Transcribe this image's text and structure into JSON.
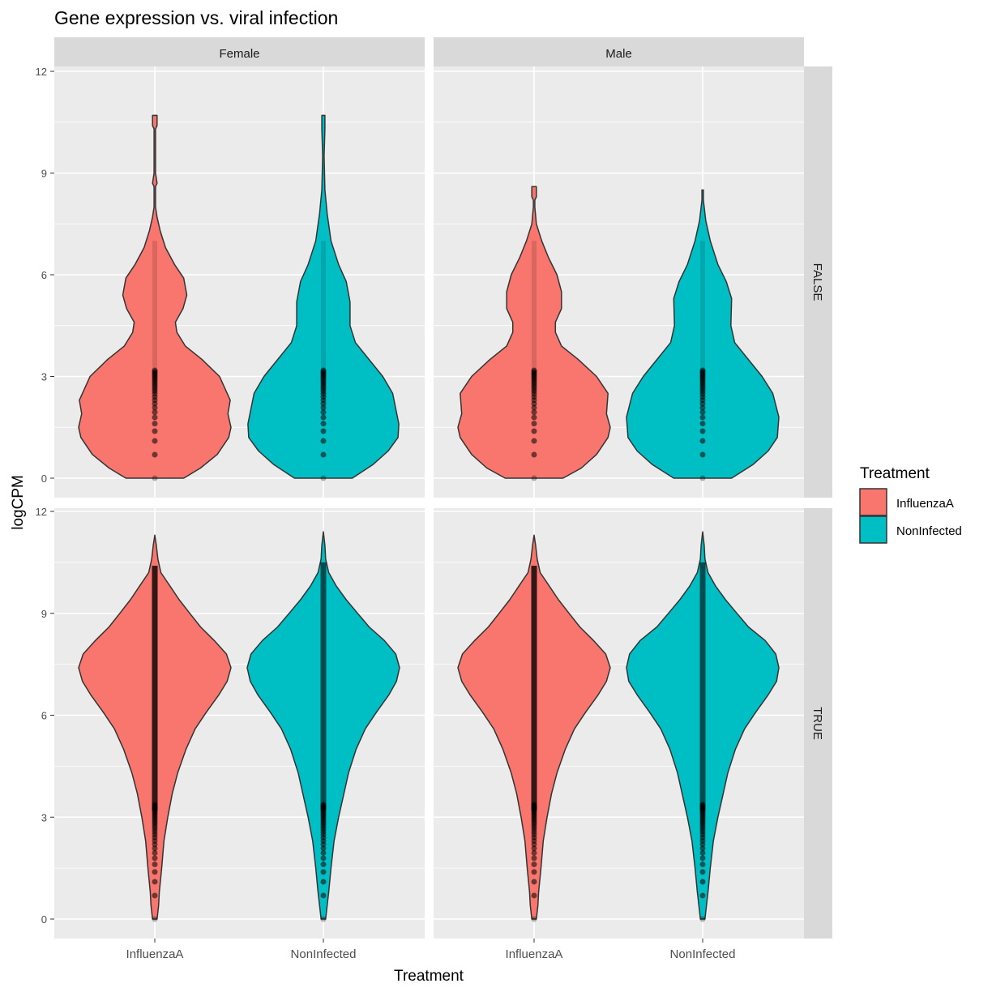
{
  "chart_data": {
    "type": "violin",
    "title": "Gene expression vs. viral infection",
    "xlabel": "Treatment",
    "ylabel": "logCPM",
    "ylim": [
      0,
      12
    ],
    "y_ticks": [
      "0",
      "3",
      "6",
      "9",
      "12"
    ],
    "categories": [
      "InfluenzaA",
      "NonInfected"
    ],
    "facet_cols": [
      "Female",
      "Male"
    ],
    "facet_rows": [
      "FALSE",
      "TRUE"
    ],
    "grid": true,
    "legend": {
      "title": "Treatment",
      "position": "right",
      "entries": [
        "InfluenzaA",
        "NonInfected"
      ]
    },
    "colors": {
      "InfluenzaA": "#F8766D",
      "NonInfected": "#00BFC4",
      "panel": "#EBEBEB",
      "strip": "#D9D9D9",
      "outline": "#333333"
    },
    "panels": [
      {
        "col": "Female",
        "row": "FALSE",
        "violins": [
          {
            "category": "InfluenzaA",
            "density": [
              [
                0,
                0.38
              ],
              [
                0.3,
                0.6
              ],
              [
                0.7,
                0.82
              ],
              [
                1.2,
                0.97
              ],
              [
                1.5,
                1.0
              ],
              [
                1.9,
                0.96
              ],
              [
                2.3,
                0.99
              ],
              [
                3,
                0.85
              ],
              [
                3.5,
                0.62
              ],
              [
                3.9,
                0.4
              ],
              [
                4.3,
                0.29
              ],
              [
                4.6,
                0.27
              ],
              [
                5,
                0.37
              ],
              [
                5.4,
                0.42
              ],
              [
                5.9,
                0.38
              ],
              [
                6.3,
                0.26
              ],
              [
                6.8,
                0.14
              ],
              [
                7.3,
                0.07
              ],
              [
                7.7,
                0.03
              ],
              [
                8,
                0.01
              ],
              [
                8.6,
                0.01
              ],
              [
                8.7,
                0.03
              ],
              [
                9,
                0.01
              ],
              [
                10.3,
                0.01
              ],
              [
                10.4,
                0.03
              ],
              [
                10.7,
                0.03
              ]
            ]
          },
          {
            "category": "NonInfected",
            "density": [
              [
                0,
                0.38
              ],
              [
                0.4,
                0.65
              ],
              [
                0.8,
                0.85
              ],
              [
                1.2,
                0.98
              ],
              [
                1.6,
                0.99
              ],
              [
                2.5,
                0.91
              ],
              [
                3,
                0.78
              ],
              [
                3.5,
                0.6
              ],
              [
                4,
                0.42
              ],
              [
                4.5,
                0.35
              ],
              [
                5.2,
                0.35
              ],
              [
                5.8,
                0.3
              ],
              [
                6.3,
                0.2
              ],
              [
                7,
                0.1
              ],
              [
                7.8,
                0.05
              ],
              [
                8.5,
                0.02
              ],
              [
                9.5,
                0.01
              ],
              [
                10.3,
                0.02
              ],
              [
                10.7,
                0.02
              ]
            ]
          }
        ]
      },
      {
        "col": "Male",
        "row": "FALSE",
        "violins": [
          {
            "category": "InfluenzaA",
            "density": [
              [
                0,
                0.38
              ],
              [
                0.3,
                0.62
              ],
              [
                0.7,
                0.82
              ],
              [
                1.2,
                0.97
              ],
              [
                1.5,
                1.0
              ],
              [
                1.9,
                0.95
              ],
              [
                2.5,
                0.97
              ],
              [
                3,
                0.82
              ],
              [
                3.5,
                0.58
              ],
              [
                3.9,
                0.36
              ],
              [
                4.3,
                0.28
              ],
              [
                4.6,
                0.28
              ],
              [
                5,
                0.36
              ],
              [
                5.5,
                0.36
              ],
              [
                6,
                0.3
              ],
              [
                6.5,
                0.19
              ],
              [
                7,
                0.1
              ],
              [
                7.5,
                0.03
              ],
              [
                8,
                0.01
              ],
              [
                8.2,
                0.01
              ],
              [
                8.3,
                0.03
              ],
              [
                8.6,
                0.03
              ]
            ]
          },
          {
            "category": "NonInfected",
            "density": [
              [
                0,
                0.38
              ],
              [
                0.4,
                0.66
              ],
              [
                0.8,
                0.86
              ],
              [
                1.2,
                0.98
              ],
              [
                1.8,
                1.0
              ],
              [
                2.5,
                0.92
              ],
              [
                3,
                0.78
              ],
              [
                3.5,
                0.6
              ],
              [
                4,
                0.42
              ],
              [
                4.5,
                0.37
              ],
              [
                5.3,
                0.38
              ],
              [
                5.8,
                0.31
              ],
              [
                6.3,
                0.2
              ],
              [
                7,
                0.1
              ],
              [
                7.6,
                0.04
              ],
              [
                8.2,
                0.01
              ],
              [
                8.5,
                0.01
              ]
            ]
          }
        ]
      },
      {
        "col": "Female",
        "row": "TRUE",
        "violins": [
          {
            "category": "InfluenzaA",
            "density": [
              [
                0,
                0.03
              ],
              [
                0.4,
                0.05
              ],
              [
                0.8,
                0.06
              ],
              [
                1.5,
                0.09
              ],
              [
                2.3,
                0.12
              ],
              [
                3,
                0.17
              ],
              [
                3.7,
                0.23
              ],
              [
                4.3,
                0.3
              ],
              [
                5,
                0.41
              ],
              [
                5.6,
                0.53
              ],
              [
                6.1,
                0.68
              ],
              [
                6.6,
                0.84
              ],
              [
                7,
                0.95
              ],
              [
                7.4,
                1.0
              ],
              [
                7.8,
                0.94
              ],
              [
                8.2,
                0.78
              ],
              [
                8.6,
                0.6
              ],
              [
                9,
                0.46
              ],
              [
                9.4,
                0.32
              ],
              [
                9.8,
                0.2
              ],
              [
                10.2,
                0.08
              ],
              [
                10.6,
                0.04
              ],
              [
                11,
                0.02
              ],
              [
                11.3,
                0.0
              ]
            ]
          },
          {
            "category": "NonInfected",
            "density": [
              [
                0,
                0.03
              ],
              [
                0.4,
                0.05
              ],
              [
                0.8,
                0.07
              ],
              [
                1.5,
                0.1
              ],
              [
                2.3,
                0.14
              ],
              [
                3,
                0.2
              ],
              [
                3.7,
                0.27
              ],
              [
                4.3,
                0.33
              ],
              [
                5,
                0.43
              ],
              [
                5.6,
                0.55
              ],
              [
                6.1,
                0.7
              ],
              [
                6.6,
                0.86
              ],
              [
                7,
                0.96
              ],
              [
                7.4,
                1.0
              ],
              [
                7.8,
                0.95
              ],
              [
                8.2,
                0.8
              ],
              [
                8.6,
                0.6
              ],
              [
                9,
                0.45
              ],
              [
                9.4,
                0.3
              ],
              [
                9.8,
                0.17
              ],
              [
                10.2,
                0.07
              ],
              [
                10.6,
                0.03
              ],
              [
                11,
                0.02
              ],
              [
                11.4,
                0.0
              ]
            ]
          }
        ]
      },
      {
        "col": "Male",
        "row": "TRUE",
        "violins": [
          {
            "category": "InfluenzaA",
            "density": [
              [
                0,
                0.03
              ],
              [
                0.4,
                0.05
              ],
              [
                0.8,
                0.06
              ],
              [
                1.5,
                0.09
              ],
              [
                2.3,
                0.12
              ],
              [
                3,
                0.17
              ],
              [
                3.7,
                0.23
              ],
              [
                4.3,
                0.3
              ],
              [
                5,
                0.41
              ],
              [
                5.6,
                0.53
              ],
              [
                6.1,
                0.68
              ],
              [
                6.6,
                0.84
              ],
              [
                7,
                0.95
              ],
              [
                7.4,
                1.0
              ],
              [
                7.8,
                0.94
              ],
              [
                8.2,
                0.78
              ],
              [
                8.6,
                0.6
              ],
              [
                9,
                0.46
              ],
              [
                9.4,
                0.32
              ],
              [
                9.8,
                0.2
              ],
              [
                10.2,
                0.08
              ],
              [
                10.6,
                0.04
              ],
              [
                11,
                0.02
              ],
              [
                11.3,
                0.0
              ]
            ]
          },
          {
            "category": "NonInfected",
            "density": [
              [
                0,
                0.03
              ],
              [
                0.4,
                0.05
              ],
              [
                0.8,
                0.07
              ],
              [
                1.5,
                0.1
              ],
              [
                2.3,
                0.14
              ],
              [
                3,
                0.2
              ],
              [
                3.7,
                0.27
              ],
              [
                4.3,
                0.33
              ],
              [
                5,
                0.43
              ],
              [
                5.6,
                0.55
              ],
              [
                6.1,
                0.7
              ],
              [
                6.6,
                0.86
              ],
              [
                7,
                0.97
              ],
              [
                7.4,
                1.0
              ],
              [
                7.8,
                0.96
              ],
              [
                8.2,
                0.82
              ],
              [
                8.6,
                0.6
              ],
              [
                9,
                0.45
              ],
              [
                9.4,
                0.3
              ],
              [
                9.8,
                0.17
              ],
              [
                10.2,
                0.07
              ],
              [
                10.6,
                0.03
              ],
              [
                11,
                0.02
              ],
              [
                11.4,
                0.0
              ]
            ]
          }
        ]
      }
    ]
  }
}
